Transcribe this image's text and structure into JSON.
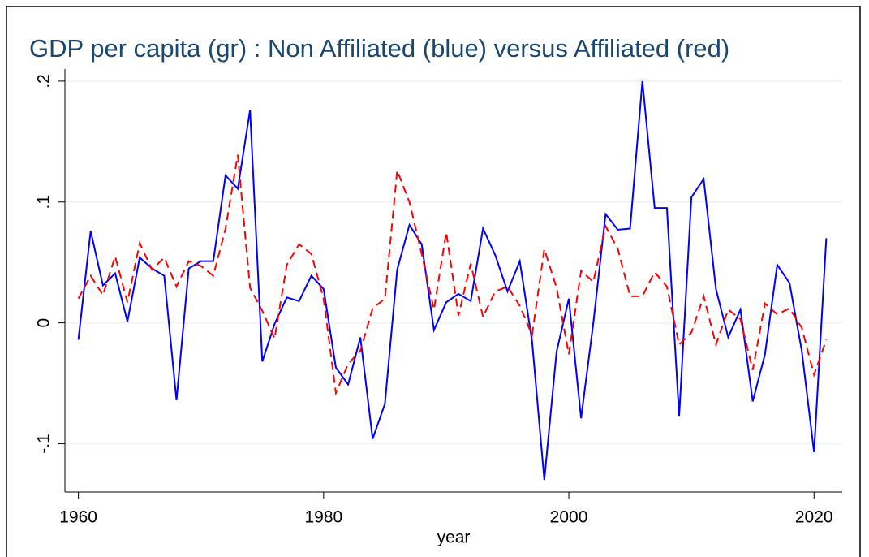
{
  "chart_data": {
    "type": "line",
    "title": "GDP per capita (gr) : Non Affiliated (blue) versus Affiliated (red)",
    "x_label": "year",
    "x": [
      1960,
      1961,
      1962,
      1963,
      1964,
      1965,
      1966,
      1967,
      1968,
      1969,
      1970,
      1971,
      1972,
      1973,
      1974,
      1975,
      1976,
      1977,
      1978,
      1979,
      1980,
      1981,
      1982,
      1983,
      1984,
      1985,
      1986,
      1987,
      1988,
      1989,
      1990,
      1991,
      1992,
      1993,
      1994,
      1995,
      1996,
      1997,
      1998,
      1999,
      2000,
      2001,
      2002,
      2003,
      2004,
      2005,
      2006,
      2007,
      2008,
      2009,
      2010,
      2011,
      2012,
      2013,
      2014,
      2015,
      2016,
      2017,
      2018,
      2019,
      2020,
      2021
    ],
    "series": [
      {
        "color": "#0000ff",
        "dashed": false,
        "values": [
          -0.014,
          0.076,
          0.031,
          0.041,
          0.001,
          0.054,
          0.045,
          0.039,
          -0.064,
          0.045,
          0.051,
          0.051,
          0.122,
          0.111,
          0.176,
          -0.032,
          -0.001,
          0.021,
          0.018,
          0.039,
          0.028,
          -0.037,
          -0.051,
          -0.012,
          -0.096,
          -0.067,
          0.044,
          0.081,
          0.065,
          -0.006,
          0.017,
          0.024,
          0.018,
          0.078,
          0.056,
          0.026,
          0.051,
          -0.015,
          -0.13,
          -0.024,
          0.02,
          -0.079,
          0.0,
          0.09,
          0.077,
          0.078,
          0.2,
          0.095,
          0.095,
          -0.077,
          0.104,
          0.119,
          0.028,
          -0.012,
          0.011,
          -0.065,
          -0.026,
          0.048,
          0.033,
          -0.023,
          -0.107,
          0.07
        ]
      },
      {
        "color": "#ff0000",
        "dashed": true,
        "values": [
          0.02,
          0.039,
          0.023,
          0.055,
          0.017,
          0.066,
          0.044,
          0.054,
          0.03,
          0.051,
          0.047,
          0.039,
          0.078,
          0.139,
          0.029,
          0.01,
          -0.013,
          0.048,
          0.065,
          0.057,
          0.02,
          -0.058,
          -0.034,
          -0.023,
          0.012,
          0.02,
          0.126,
          0.1,
          0.057,
          0.011,
          0.075,
          0.006,
          0.049,
          0.005,
          0.026,
          0.03,
          0.014,
          -0.01,
          0.061,
          0.029,
          -0.026,
          0.043,
          0.034,
          0.08,
          0.061,
          0.022,
          0.022,
          0.042,
          0.03,
          -0.018,
          -0.008,
          0.022,
          -0.018,
          0.011,
          0.003,
          -0.039,
          0.016,
          0.007,
          0.012,
          -0.004,
          -0.043,
          -0.014
        ]
      }
    ],
    "xlim": [
      1958.9,
      2022.3
    ],
    "ylim": [
      -0.14,
      0.21
    ],
    "xticks": [
      1960,
      1980,
      2000,
      2020
    ],
    "yticks": [
      {
        "value": -0.1,
        "label": "-.1"
      },
      0,
      {
        "value": 0.1,
        "label": ".1"
      },
      {
        "value": 0.2,
        "label": ".2"
      }
    ],
    "grid": true
  }
}
